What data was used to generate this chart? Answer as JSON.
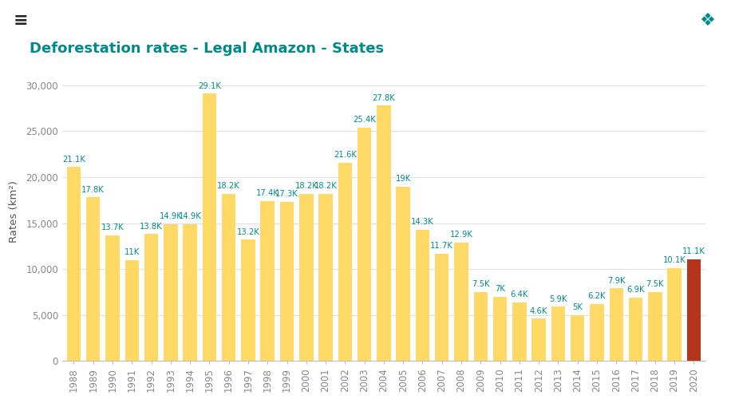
{
  "years": [
    1988,
    1989,
    1990,
    1991,
    1992,
    1993,
    1994,
    1995,
    1996,
    1997,
    1998,
    1999,
    2000,
    2001,
    2002,
    2003,
    2004,
    2005,
    2006,
    2007,
    2008,
    2009,
    2010,
    2011,
    2012,
    2013,
    2014,
    2015,
    2016,
    2017,
    2018,
    2019,
    2020
  ],
  "values": [
    21100,
    17800,
    13700,
    11000,
    13800,
    14900,
    14900,
    29100,
    18200,
    13200,
    17400,
    17300,
    18200,
    18200,
    21600,
    25400,
    27800,
    19000,
    14300,
    11700,
    12900,
    7500,
    7000,
    6400,
    4600,
    5900,
    5000,
    6200,
    7900,
    6900,
    7500,
    10100,
    11100
  ],
  "labels": [
    "21.1K",
    "17.8K",
    "13.7K",
    "11K",
    "13.8K",
    "14.9K",
    "14.9K",
    "29.1K",
    "18.2K",
    "13.2K",
    "17.4K",
    "17.3K",
    "18.2K",
    "18.2K",
    "21.6K",
    "25.4K",
    "27.8K",
    "19K",
    "14.3K",
    "11.7K",
    "12.9K",
    "7.5K",
    "7K",
    "6.4K",
    "4.6K",
    "5.9K",
    "5K",
    "6.2K",
    "7.9K",
    "6.9K",
    "7.5K",
    "10.1K",
    "11.1K"
  ],
  "bar_color_default": "#FFD966",
  "bar_color_highlight": "#B5351A",
  "highlight_year": 2020,
  "label_color": "#008B8B",
  "title": "Deforestation rates - Legal Amazon - States",
  "title_color": "#008B8B",
  "ylabel": "Rates (km²)",
  "ylabel_color": "#555555",
  "background_color": "#FFFFFF",
  "grid_color": "#E0E0E0",
  "ylim": [
    0,
    32500
  ],
  "yticks": [
    0,
    5000,
    10000,
    15000,
    20000,
    25000,
    30000
  ],
  "ytick_labels": [
    "0",
    "5,000",
    "10,000",
    "15,000",
    "20,000",
    "25,000",
    "30,000"
  ],
  "menu_icon_color": "#222222",
  "compass_icon_color": "#008B8B",
  "title_fontsize": 13,
  "label_fontsize": 7.2,
  "axis_fontsize": 8.5,
  "tick_color": "#888888"
}
